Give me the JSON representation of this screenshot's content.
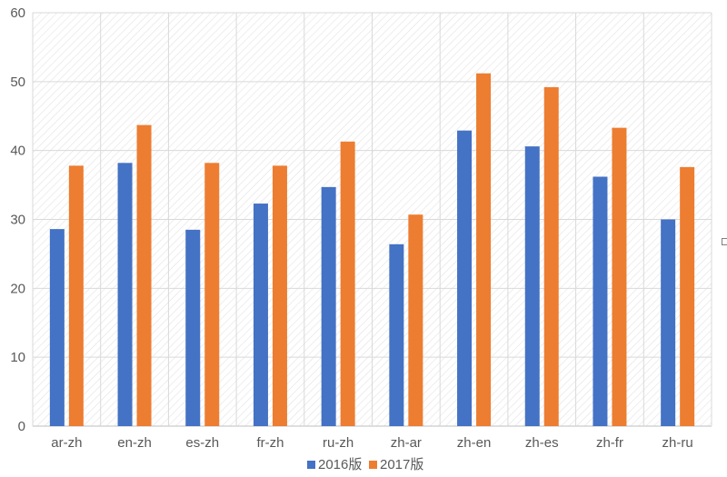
{
  "chart_data": {
    "type": "bar",
    "title": "",
    "xlabel": "",
    "ylabel": "",
    "categories": [
      "ar-zh",
      "en-zh",
      "es-zh",
      "fr-zh",
      "ru-zh",
      "zh-ar",
      "zh-en",
      "zh-es",
      "zh-fr",
      "zh-ru"
    ],
    "series": [
      {
        "name": "2016版",
        "color": "#4472c4",
        "values": [
          28.6,
          38.2,
          28.5,
          32.3,
          34.7,
          26.4,
          42.9,
          40.6,
          36.2,
          30.0
        ]
      },
      {
        "name": "2017版",
        "color": "#ed7d31",
        "values": [
          37.8,
          43.7,
          38.2,
          37.8,
          41.3,
          30.7,
          51.2,
          49.2,
          43.3,
          37.6
        ]
      }
    ],
    "ylim": [
      0,
      60
    ],
    "yticks": [
      "0",
      "10",
      "20",
      "30",
      "40",
      "50",
      "60"
    ],
    "grid": true,
    "legend": "bottom",
    "plot_background": "hatched"
  }
}
